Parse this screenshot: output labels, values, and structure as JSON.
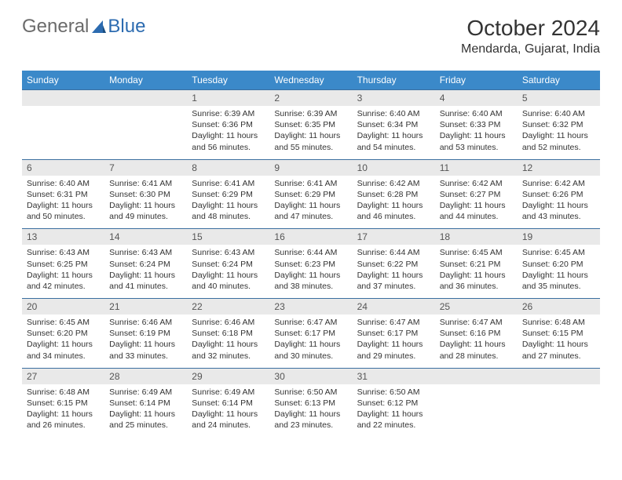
{
  "logo": {
    "part1": "General",
    "part2": "Blue"
  },
  "title": "October 2024",
  "location": "Mendarda, Gujarat, India",
  "colors": {
    "header_bg": "#3b89c9",
    "header_text": "#ffffff",
    "daynum_bg": "#e9e9e9",
    "daynum_text": "#555555",
    "body_text": "#333333",
    "row_border": "#3b6fa0",
    "logo_gray": "#6b6b6b",
    "logo_blue": "#2c6bb0"
  },
  "typography": {
    "title_fontsize": 28,
    "location_fontsize": 16,
    "dayhdr_fontsize": 12,
    "daynum_fontsize": 12,
    "cell_fontsize": 10.5
  },
  "day_headers": [
    "Sunday",
    "Monday",
    "Tuesday",
    "Wednesday",
    "Thursday",
    "Friday",
    "Saturday"
  ],
  "weeks": [
    [
      {
        "day": "",
        "sunrise": "",
        "sunset": "",
        "daylight": ""
      },
      {
        "day": "",
        "sunrise": "",
        "sunset": "",
        "daylight": ""
      },
      {
        "day": "1",
        "sunrise": "Sunrise: 6:39 AM",
        "sunset": "Sunset: 6:36 PM",
        "daylight": "Daylight: 11 hours and 56 minutes."
      },
      {
        "day": "2",
        "sunrise": "Sunrise: 6:39 AM",
        "sunset": "Sunset: 6:35 PM",
        "daylight": "Daylight: 11 hours and 55 minutes."
      },
      {
        "day": "3",
        "sunrise": "Sunrise: 6:40 AM",
        "sunset": "Sunset: 6:34 PM",
        "daylight": "Daylight: 11 hours and 54 minutes."
      },
      {
        "day": "4",
        "sunrise": "Sunrise: 6:40 AM",
        "sunset": "Sunset: 6:33 PM",
        "daylight": "Daylight: 11 hours and 53 minutes."
      },
      {
        "day": "5",
        "sunrise": "Sunrise: 6:40 AM",
        "sunset": "Sunset: 6:32 PM",
        "daylight": "Daylight: 11 hours and 52 minutes."
      }
    ],
    [
      {
        "day": "6",
        "sunrise": "Sunrise: 6:40 AM",
        "sunset": "Sunset: 6:31 PM",
        "daylight": "Daylight: 11 hours and 50 minutes."
      },
      {
        "day": "7",
        "sunrise": "Sunrise: 6:41 AM",
        "sunset": "Sunset: 6:30 PM",
        "daylight": "Daylight: 11 hours and 49 minutes."
      },
      {
        "day": "8",
        "sunrise": "Sunrise: 6:41 AM",
        "sunset": "Sunset: 6:29 PM",
        "daylight": "Daylight: 11 hours and 48 minutes."
      },
      {
        "day": "9",
        "sunrise": "Sunrise: 6:41 AM",
        "sunset": "Sunset: 6:29 PM",
        "daylight": "Daylight: 11 hours and 47 minutes."
      },
      {
        "day": "10",
        "sunrise": "Sunrise: 6:42 AM",
        "sunset": "Sunset: 6:28 PM",
        "daylight": "Daylight: 11 hours and 46 minutes."
      },
      {
        "day": "11",
        "sunrise": "Sunrise: 6:42 AM",
        "sunset": "Sunset: 6:27 PM",
        "daylight": "Daylight: 11 hours and 44 minutes."
      },
      {
        "day": "12",
        "sunrise": "Sunrise: 6:42 AM",
        "sunset": "Sunset: 6:26 PM",
        "daylight": "Daylight: 11 hours and 43 minutes."
      }
    ],
    [
      {
        "day": "13",
        "sunrise": "Sunrise: 6:43 AM",
        "sunset": "Sunset: 6:25 PM",
        "daylight": "Daylight: 11 hours and 42 minutes."
      },
      {
        "day": "14",
        "sunrise": "Sunrise: 6:43 AM",
        "sunset": "Sunset: 6:24 PM",
        "daylight": "Daylight: 11 hours and 41 minutes."
      },
      {
        "day": "15",
        "sunrise": "Sunrise: 6:43 AM",
        "sunset": "Sunset: 6:24 PM",
        "daylight": "Daylight: 11 hours and 40 minutes."
      },
      {
        "day": "16",
        "sunrise": "Sunrise: 6:44 AM",
        "sunset": "Sunset: 6:23 PM",
        "daylight": "Daylight: 11 hours and 38 minutes."
      },
      {
        "day": "17",
        "sunrise": "Sunrise: 6:44 AM",
        "sunset": "Sunset: 6:22 PM",
        "daylight": "Daylight: 11 hours and 37 minutes."
      },
      {
        "day": "18",
        "sunrise": "Sunrise: 6:45 AM",
        "sunset": "Sunset: 6:21 PM",
        "daylight": "Daylight: 11 hours and 36 minutes."
      },
      {
        "day": "19",
        "sunrise": "Sunrise: 6:45 AM",
        "sunset": "Sunset: 6:20 PM",
        "daylight": "Daylight: 11 hours and 35 minutes."
      }
    ],
    [
      {
        "day": "20",
        "sunrise": "Sunrise: 6:45 AM",
        "sunset": "Sunset: 6:20 PM",
        "daylight": "Daylight: 11 hours and 34 minutes."
      },
      {
        "day": "21",
        "sunrise": "Sunrise: 6:46 AM",
        "sunset": "Sunset: 6:19 PM",
        "daylight": "Daylight: 11 hours and 33 minutes."
      },
      {
        "day": "22",
        "sunrise": "Sunrise: 6:46 AM",
        "sunset": "Sunset: 6:18 PM",
        "daylight": "Daylight: 11 hours and 32 minutes."
      },
      {
        "day": "23",
        "sunrise": "Sunrise: 6:47 AM",
        "sunset": "Sunset: 6:17 PM",
        "daylight": "Daylight: 11 hours and 30 minutes."
      },
      {
        "day": "24",
        "sunrise": "Sunrise: 6:47 AM",
        "sunset": "Sunset: 6:17 PM",
        "daylight": "Daylight: 11 hours and 29 minutes."
      },
      {
        "day": "25",
        "sunrise": "Sunrise: 6:47 AM",
        "sunset": "Sunset: 6:16 PM",
        "daylight": "Daylight: 11 hours and 28 minutes."
      },
      {
        "day": "26",
        "sunrise": "Sunrise: 6:48 AM",
        "sunset": "Sunset: 6:15 PM",
        "daylight": "Daylight: 11 hours and 27 minutes."
      }
    ],
    [
      {
        "day": "27",
        "sunrise": "Sunrise: 6:48 AM",
        "sunset": "Sunset: 6:15 PM",
        "daylight": "Daylight: 11 hours and 26 minutes."
      },
      {
        "day": "28",
        "sunrise": "Sunrise: 6:49 AM",
        "sunset": "Sunset: 6:14 PM",
        "daylight": "Daylight: 11 hours and 25 minutes."
      },
      {
        "day": "29",
        "sunrise": "Sunrise: 6:49 AM",
        "sunset": "Sunset: 6:14 PM",
        "daylight": "Daylight: 11 hours and 24 minutes."
      },
      {
        "day": "30",
        "sunrise": "Sunrise: 6:50 AM",
        "sunset": "Sunset: 6:13 PM",
        "daylight": "Daylight: 11 hours and 23 minutes."
      },
      {
        "day": "31",
        "sunrise": "Sunrise: 6:50 AM",
        "sunset": "Sunset: 6:12 PM",
        "daylight": "Daylight: 11 hours and 22 minutes."
      },
      {
        "day": "",
        "sunrise": "",
        "sunset": "",
        "daylight": ""
      },
      {
        "day": "",
        "sunrise": "",
        "sunset": "",
        "daylight": ""
      }
    ]
  ]
}
